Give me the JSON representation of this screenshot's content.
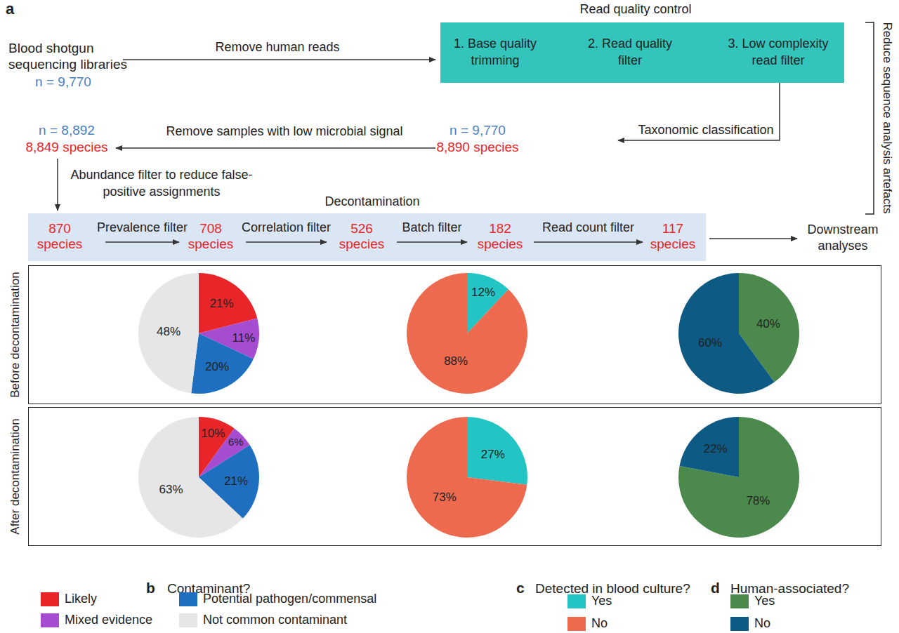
{
  "diagram": {
    "panel_label": "a",
    "start": {
      "text": [
        "Blood shotgun",
        "sequencing libraries"
      ],
      "n": "n = 9,770"
    },
    "step1": "Remove human reads",
    "qc": {
      "title": "Read quality control",
      "steps": [
        [
          "1. Base quality",
          "trimming"
        ],
        [
          "2. Read quality",
          "filter"
        ],
        [
          "3. Low complexity",
          "read filter"
        ]
      ]
    },
    "bracket": "Reduce sequence analysis artefacts",
    "step2": "Taxonomic classification",
    "node2": {
      "n": "n = 9,770",
      "species": "8,890 species"
    },
    "step3": "Remove samples with low microbial signal",
    "node3": {
      "n": "n = 8,892",
      "species": "8,849 species"
    },
    "step4": [
      "Abundance filter to reduce false-",
      "positive assignments"
    ],
    "decontamination": {
      "title": "Decontamination",
      "start": [
        "870",
        "species"
      ],
      "filters": [
        {
          "name": "Prevalence filter",
          "result": [
            "708",
            "species"
          ]
        },
        {
          "name": "Correlation filter",
          "result": [
            "526",
            "species"
          ]
        },
        {
          "name": "Batch filter",
          "result": [
            "182",
            "species"
          ]
        },
        {
          "name": "Read count filter",
          "result": [
            "117",
            "species"
          ]
        }
      ]
    },
    "end": [
      "Downstream",
      "analyses"
    ]
  },
  "rows": [
    "Before decontamination",
    "After decontamination"
  ],
  "panels": [
    {
      "label": "b",
      "title": "Contaminant?",
      "items": [
        {
          "label": "Likely",
          "color": "#e8262a"
        },
        {
          "label": "Mixed evidence",
          "color": "#a64cd0"
        },
        {
          "label": "Potential pathogen/commensal",
          "color": "#1f6fc0"
        },
        {
          "label": "Not common contaminant",
          "color": "#e6e6e6"
        }
      ]
    },
    {
      "label": "c",
      "title": "Detected in blood culture?",
      "items": [
        {
          "label": "Yes",
          "color": "#22c4c4"
        },
        {
          "label": "No",
          "color": "#ee6a4e"
        }
      ]
    },
    {
      "label": "d",
      "title": "Human-associated?",
      "items": [
        {
          "label": "Yes",
          "color": "#4b8a4c"
        },
        {
          "label": "No",
          "color": "#0d5a85"
        }
      ]
    }
  ],
  "chart_data": [
    {
      "type": "pie",
      "categories": [
        "Likely",
        "Mixed evidence",
        "Potential pathogen/commensal",
        "Not common contaminant"
      ],
      "values": [
        21,
        11,
        20,
        48
      ],
      "value_labels": [
        "21%",
        "11%",
        "20%",
        "48%"
      ],
      "colors": [
        "#e8262a",
        "#a64cd0",
        "#1f6fc0",
        "#e6e6e6"
      ],
      "data_labels": true
    },
    {
      "type": "pie",
      "categories": [
        "Yes",
        "No"
      ],
      "values": [
        12,
        88
      ],
      "value_labels": [
        "12%",
        "88%"
      ],
      "colors": [
        "#22c4c4",
        "#ee6a4e"
      ],
      "data_labels": true
    },
    {
      "type": "pie",
      "categories": [
        "Yes",
        "No"
      ],
      "values": [
        40,
        60
      ],
      "value_labels": [
        "40%",
        "60%"
      ],
      "colors": [
        "#4b8a4c",
        "#0d5a85"
      ],
      "data_labels": true
    },
    {
      "type": "pie",
      "categories": [
        "Likely",
        "Mixed evidence",
        "Potential pathogen/commensal",
        "Not common contaminant"
      ],
      "values": [
        10,
        6,
        21,
        63
      ],
      "value_labels": [
        "10%",
        "6%",
        "21%",
        "63%"
      ],
      "colors": [
        "#e8262a",
        "#a64cd0",
        "#1f6fc0",
        "#e6e6e6"
      ],
      "data_labels": true
    },
    {
      "type": "pie",
      "categories": [
        "Yes",
        "No"
      ],
      "values": [
        27,
        73
      ],
      "value_labels": [
        "27%",
        "73%"
      ],
      "colors": [
        "#22c4c4",
        "#ee6a4e"
      ],
      "data_labels": true
    },
    {
      "type": "pie",
      "categories": [
        "Yes",
        "No"
      ],
      "values": [
        78,
        22
      ],
      "value_labels": [
        "78%",
        "22%"
      ],
      "colors": [
        "#4b8a4c",
        "#0d5a85"
      ],
      "data_labels": true
    }
  ]
}
